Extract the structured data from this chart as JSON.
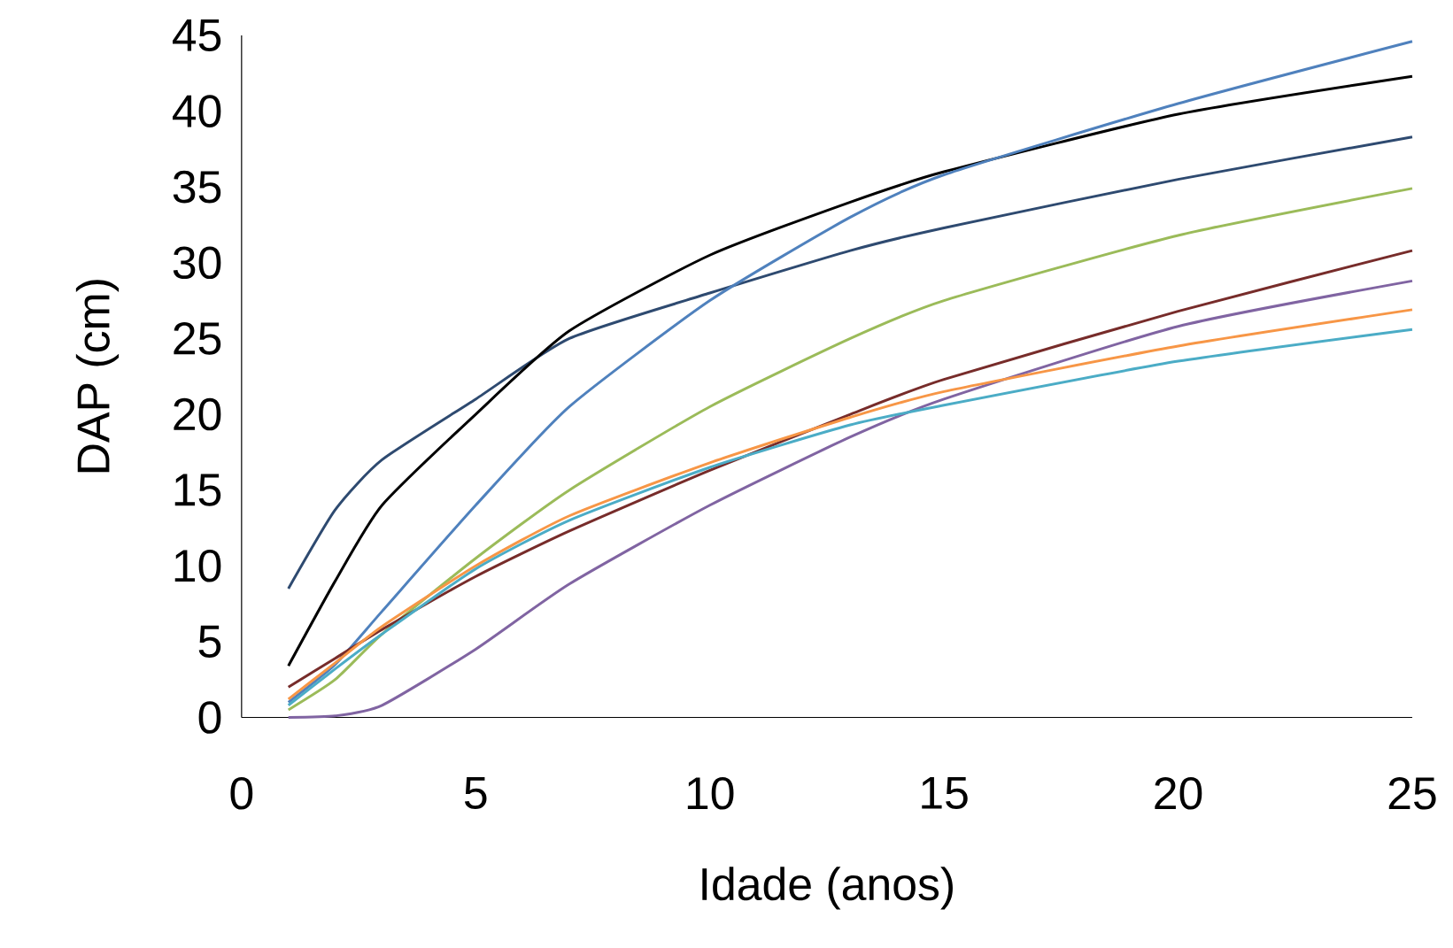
{
  "chart_data": {
    "type": "line",
    "xlabel": "Idade (anos)",
    "ylabel": "DAP (cm)",
    "xlim": [
      0,
      25
    ],
    "ylim": [
      0,
      45
    ],
    "xticks": [
      0,
      5,
      10,
      15,
      20,
      25
    ],
    "yticks": [
      0,
      5,
      10,
      15,
      20,
      25,
      30,
      35,
      40,
      45
    ],
    "grid": false,
    "marker": "none",
    "line_style": "solid",
    "x": [
      1,
      2,
      3,
      5,
      7,
      10,
      13,
      15,
      20,
      25
    ],
    "series": [
      {
        "color": "#2e4a70",
        "values": [
          8.5,
          13.7,
          17,
          21,
          25,
          28,
          30.8,
          32.3,
          35.5,
          38.3
        ]
      },
      {
        "color": "#000000",
        "values": [
          3.4,
          9,
          14,
          20,
          25.5,
          30.5,
          34,
          36,
          39.8,
          42.3
        ]
      },
      {
        "color": "#4f81bd",
        "values": [
          1,
          3.5,
          7,
          14,
          20.5,
          27.5,
          33,
          35.8,
          40.5,
          44.6
        ]
      },
      {
        "color": "#9bbb59",
        "values": [
          0.5,
          2.5,
          5.5,
          10.5,
          15,
          20.5,
          25,
          27.5,
          31.8,
          34.9
        ]
      },
      {
        "color": "#772c2a",
        "values": [
          2,
          3.9,
          5.8,
          9.3,
          12.3,
          16.3,
          20,
          22.3,
          26.8,
          30.8
        ]
      },
      {
        "color": "#8064a2",
        "values": [
          0,
          0.1,
          0.8,
          4.5,
          8.8,
          14,
          18.5,
          21,
          25.8,
          28.8
        ]
      },
      {
        "color": "#f79646",
        "values": [
          1.2,
          3.6,
          6,
          10,
          13.3,
          16.8,
          19.8,
          21.5,
          24.5,
          26.9
        ]
      },
      {
        "color": "#4bacc6",
        "values": [
          0.8,
          3.2,
          5.5,
          9.8,
          13,
          16.5,
          19.3,
          20.6,
          23.5,
          25.6
        ]
      }
    ]
  }
}
